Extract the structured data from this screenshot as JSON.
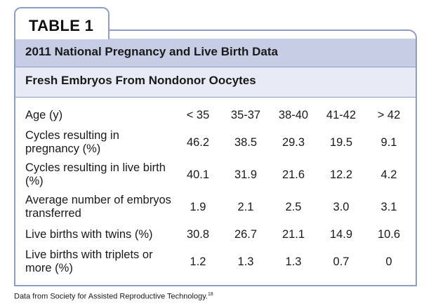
{
  "table": {
    "tab_label": "TABLE 1",
    "title": "2011 National Pregnancy and Live Birth Data",
    "subtitle": "Fresh Embryos From Nondonor Oocytes",
    "header": {
      "label": "Age (y)",
      "columns": [
        "< 35",
        "35-37",
        "38-40",
        "41-42",
        "> 42"
      ]
    },
    "rows": [
      {
        "label": "Cycles resulting in pregnancy (%)",
        "values": [
          "46.2",
          "38.5",
          "29.3",
          "19.5",
          "9.1"
        ]
      },
      {
        "label": "Cycles resulting in live birth (%)",
        "values": [
          "40.1",
          "31.9",
          "21.6",
          "12.2",
          "4.2"
        ]
      },
      {
        "label": "Average number of embryos transferred",
        "values": [
          "1.9",
          "2.1",
          "2.5",
          "3.0",
          "3.1"
        ]
      },
      {
        "label": "Live births with twins (%)",
        "values": [
          "30.8",
          "26.7",
          "21.1",
          "14.9",
          "10.6"
        ]
      },
      {
        "label": "Live births with triplets or more (%)",
        "values": [
          "1.2",
          "1.3",
          "1.3",
          "0.7",
          "0"
        ]
      }
    ],
    "footer": "Data from Society for Assisted Reproductive Technology.",
    "footer_ref": "18",
    "colors": {
      "border": "#8f9dc4",
      "title_band": "#c7cde4",
      "subtitle_band": "#e8ebf5"
    }
  }
}
